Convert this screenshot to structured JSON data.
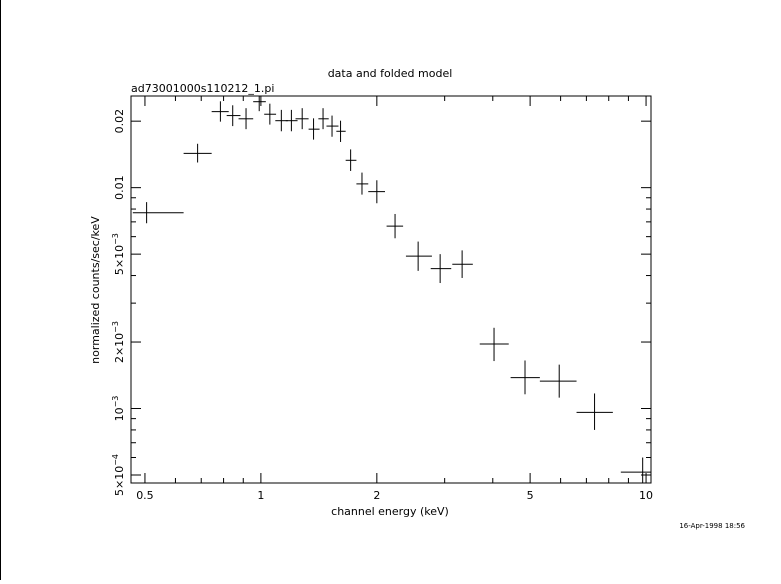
{
  "chart_data": {
    "type": "scatter",
    "title": "data and folded model",
    "subtitle": "ad73001000s110212_1.pi",
    "xlabel": "channel energy (keV)",
    "ylabel": "normalized counts/sec/keV",
    "timestamp": "16-Apr-1998 18:56",
    "x_scale": "log",
    "y_scale": "log",
    "xlim": [
      0.46,
      10.3
    ],
    "ylim": [
      0.00046,
      0.026
    ],
    "grid": false,
    "legend": "none",
    "x_ticks": [
      {
        "value": 0.5,
        "label": "0.5"
      },
      {
        "value": 1,
        "label": "1"
      },
      {
        "value": 2,
        "label": "2"
      },
      {
        "value": 5,
        "label": "5"
      },
      {
        "value": 10,
        "label": "10"
      }
    ],
    "y_ticks": [
      {
        "value": 0.0005,
        "mant": "5×10",
        "exp": "−4"
      },
      {
        "value": 0.001,
        "mant": "10",
        "exp": "−3"
      },
      {
        "value": 0.002,
        "mant": "2×10",
        "exp": "−3"
      },
      {
        "value": 0.005,
        "mant": "5×10",
        "exp": "−3"
      },
      {
        "value": 0.01,
        "mant": "0.01",
        "exp": ""
      },
      {
        "value": 0.02,
        "mant": "0.02",
        "exp": ""
      }
    ],
    "series": [
      {
        "points": [
          {
            "x": 0.505,
            "xlo": 0.465,
            "xhi": 0.63,
            "y": 0.0077,
            "ylo": 0.0069,
            "yhi": 0.0086
          },
          {
            "x": 0.685,
            "xlo": 0.63,
            "xhi": 0.745,
            "y": 0.0143,
            "ylo": 0.013,
            "yhi": 0.0158
          },
          {
            "x": 0.785,
            "xlo": 0.745,
            "xhi": 0.825,
            "y": 0.0221,
            "ylo": 0.0199,
            "yhi": 0.0246
          },
          {
            "x": 0.845,
            "xlo": 0.815,
            "xhi": 0.885,
            "y": 0.0212,
            "ylo": 0.019,
            "yhi": 0.0236
          },
          {
            "x": 0.915,
            "xlo": 0.875,
            "xhi": 0.955,
            "y": 0.0205,
            "ylo": 0.0184,
            "yhi": 0.0229
          },
          {
            "x": 0.99,
            "xlo": 0.955,
            "xhi": 1.03,
            "y": 0.0245,
            "ylo": 0.0222,
            "yhi": 0.0268
          },
          {
            "x": 1.055,
            "xlo": 1.02,
            "xhi": 1.095,
            "y": 0.0215,
            "ylo": 0.0193,
            "yhi": 0.024
          },
          {
            "x": 1.13,
            "xlo": 1.09,
            "xhi": 1.175,
            "y": 0.0201,
            "ylo": 0.018,
            "yhi": 0.0225
          },
          {
            "x": 1.2,
            "xlo": 1.16,
            "xhi": 1.245,
            "y": 0.0201,
            "ylo": 0.018,
            "yhi": 0.0225
          },
          {
            "x": 1.28,
            "xlo": 1.23,
            "xhi": 1.33,
            "y": 0.0205,
            "ylo": 0.0184,
            "yhi": 0.0229
          },
          {
            "x": 1.37,
            "xlo": 1.33,
            "xhi": 1.42,
            "y": 0.0184,
            "ylo": 0.0165,
            "yhi": 0.0206
          },
          {
            "x": 1.45,
            "xlo": 1.41,
            "xhi": 1.5,
            "y": 0.0205,
            "ylo": 0.0184,
            "yhi": 0.0229
          },
          {
            "x": 1.53,
            "xlo": 1.48,
            "xhi": 1.59,
            "y": 0.019,
            "ylo": 0.017,
            "yhi": 0.0212
          },
          {
            "x": 1.61,
            "xlo": 1.57,
            "xhi": 1.66,
            "y": 0.018,
            "ylo": 0.0161,
            "yhi": 0.0201
          },
          {
            "x": 1.71,
            "xlo": 1.66,
            "xhi": 1.77,
            "y": 0.0133,
            "ylo": 0.0119,
            "yhi": 0.0149
          },
          {
            "x": 1.83,
            "xlo": 1.77,
            "xhi": 1.9,
            "y": 0.0104,
            "ylo": 0.0093,
            "yhi": 0.0117
          },
          {
            "x": 2.0,
            "xlo": 1.9,
            "xhi": 2.1,
            "y": 0.0096,
            "ylo": 0.0085,
            "yhi": 0.0108
          },
          {
            "x": 2.23,
            "xlo": 2.12,
            "xhi": 2.34,
            "y": 0.0067,
            "ylo": 0.0059,
            "yhi": 0.0076
          },
          {
            "x": 2.56,
            "xlo": 2.38,
            "xhi": 2.78,
            "y": 0.0049,
            "ylo": 0.0042,
            "yhi": 0.0057
          },
          {
            "x": 2.92,
            "xlo": 2.76,
            "xhi": 3.12,
            "y": 0.0043,
            "ylo": 0.0037,
            "yhi": 0.005
          },
          {
            "x": 3.33,
            "xlo": 3.14,
            "xhi": 3.55,
            "y": 0.0045,
            "ylo": 0.0039,
            "yhi": 0.0052
          },
          {
            "x": 4.03,
            "xlo": 3.7,
            "xhi": 4.4,
            "y": 0.00196,
            "ylo": 0.00164,
            "yhi": 0.00232
          },
          {
            "x": 4.85,
            "xlo": 4.45,
            "xhi": 5.3,
            "y": 0.00138,
            "ylo": 0.00116,
            "yhi": 0.00165
          },
          {
            "x": 5.95,
            "xlo": 5.3,
            "xhi": 6.6,
            "y": 0.00133,
            "ylo": 0.00112,
            "yhi": 0.00158
          },
          {
            "x": 7.35,
            "xlo": 6.6,
            "xhi": 8.2,
            "y": 0.00096,
            "ylo": 0.0008,
            "yhi": 0.00117
          },
          {
            "x": 9.8,
            "xlo": 8.6,
            "xhi": 10.8,
            "y": 0.000515,
            "ylo": 0.00044,
            "yhi": 0.0006
          }
        ]
      }
    ]
  }
}
